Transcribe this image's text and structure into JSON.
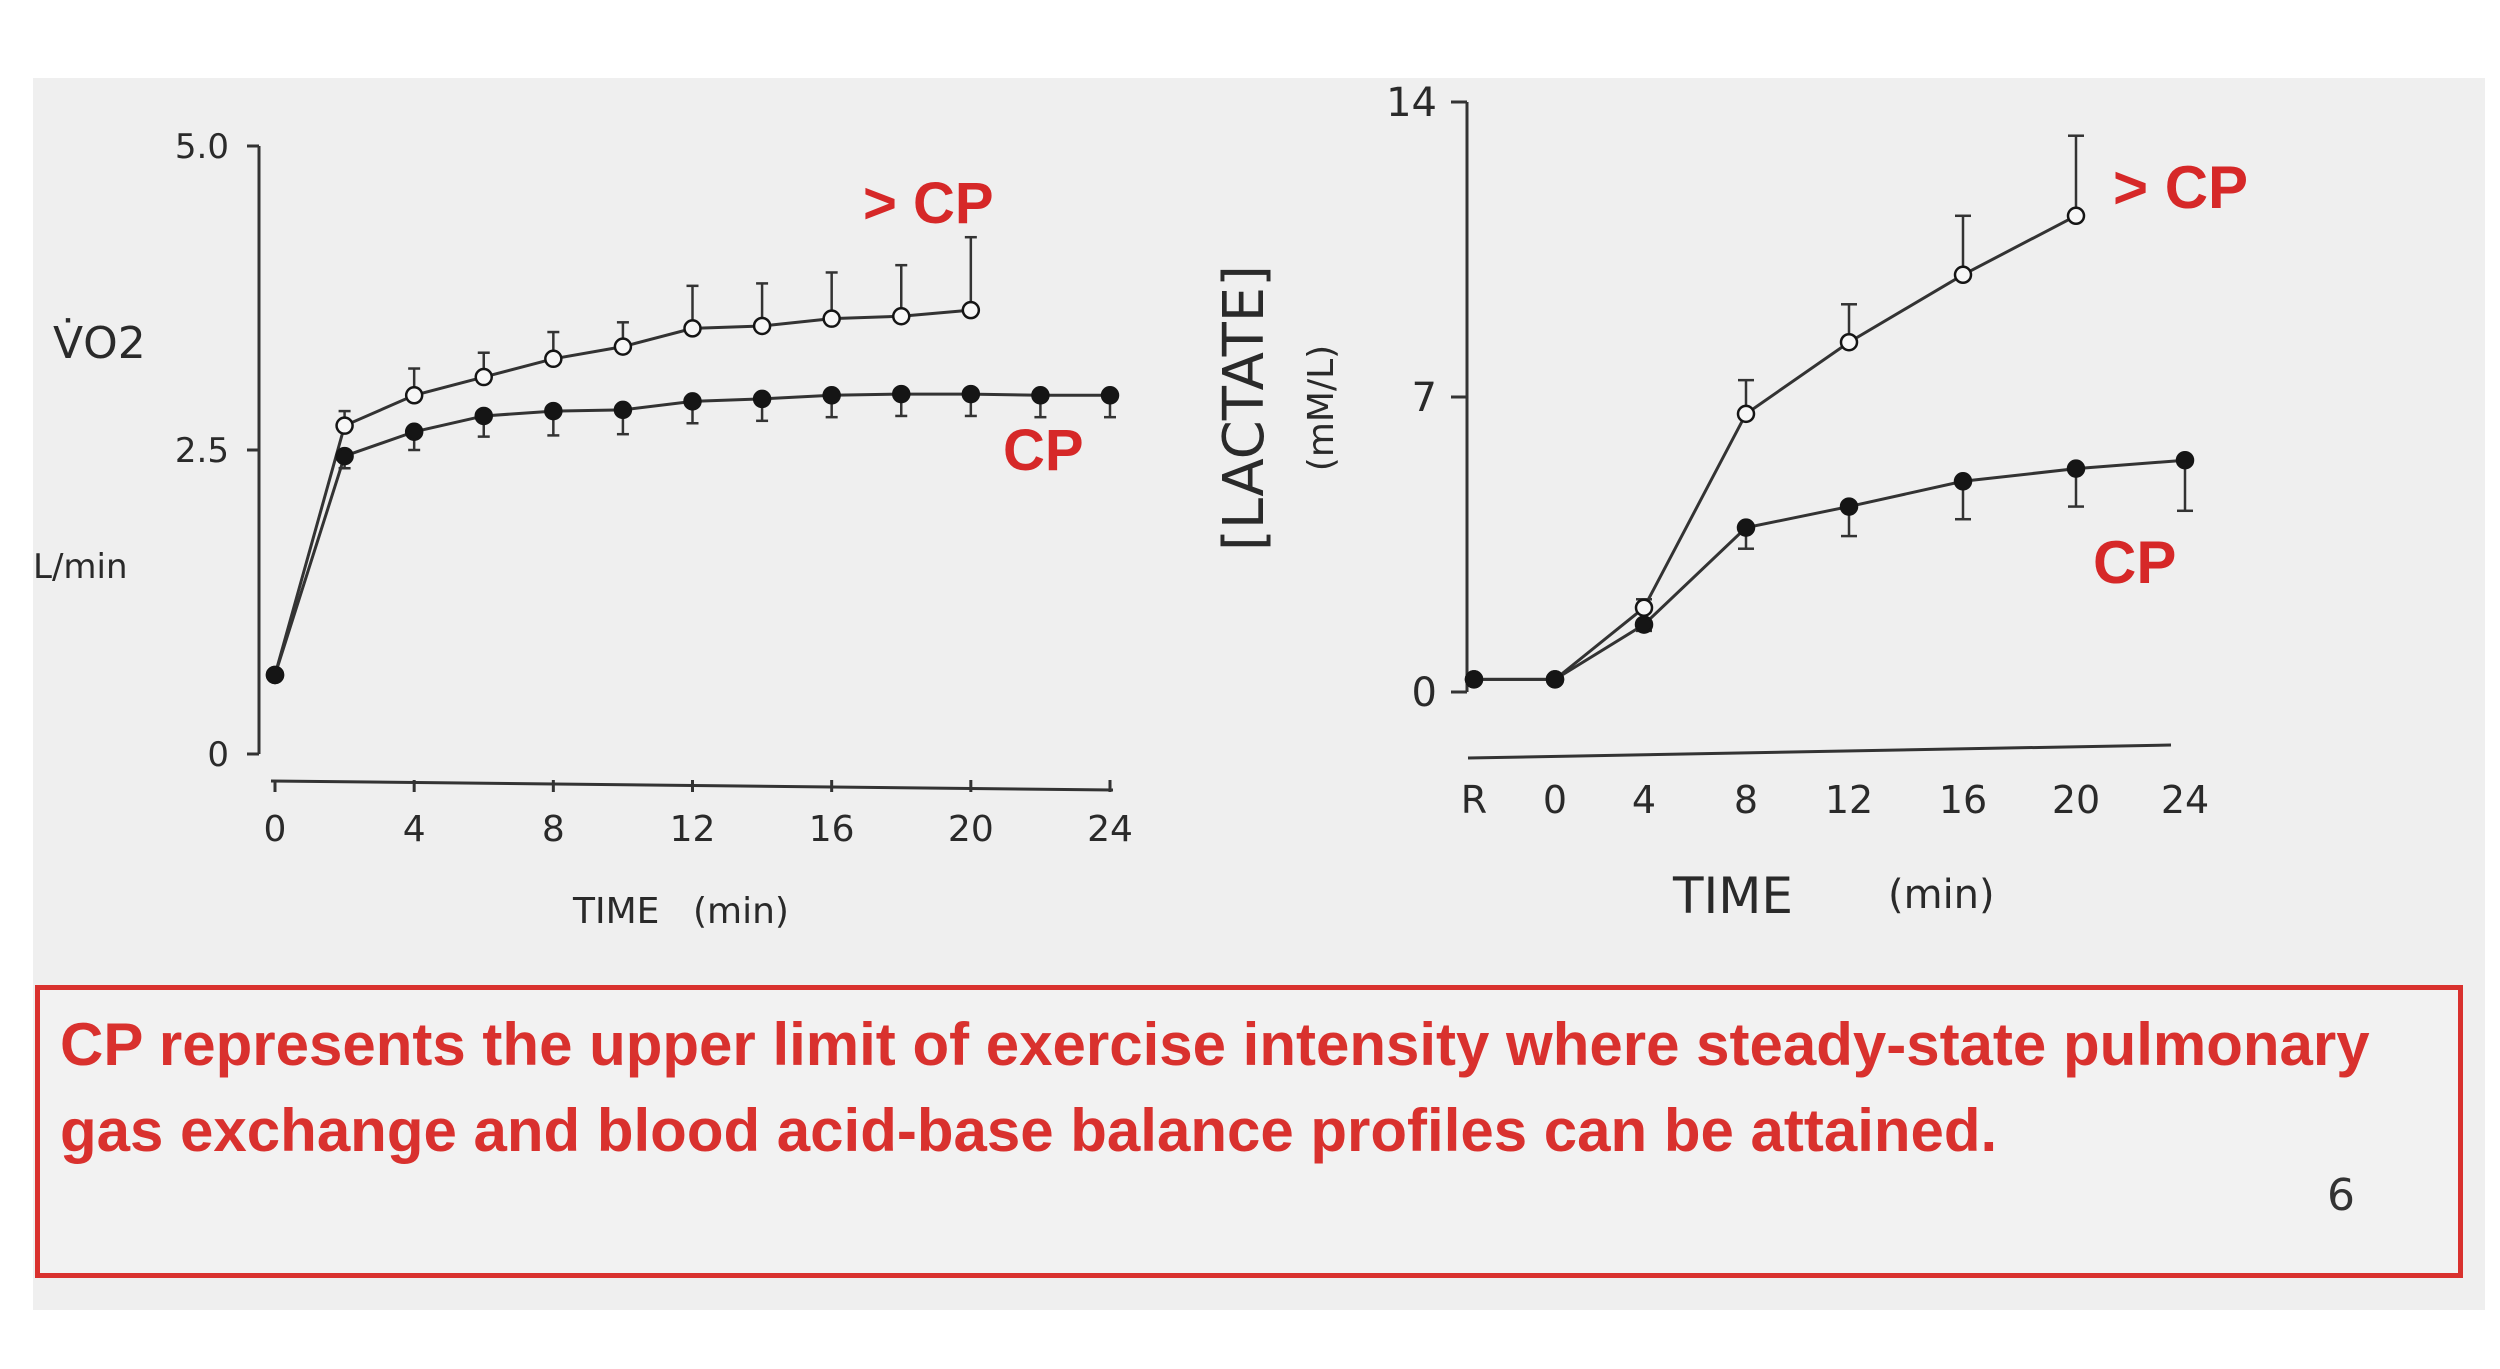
{
  "chart_data": [
    {
      "type": "line",
      "ylabel": "V̇O2",
      "yunit": "L/min",
      "xlabel": "TIME",
      "xunit": "(min)",
      "xlim": [
        0,
        24
      ],
      "ylim": [
        0,
        5.0
      ],
      "xticks": [
        "0",
        "4",
        "8",
        "12",
        "16",
        "20",
        "24"
      ],
      "yticks": [
        "0",
        "2.5",
        "5.0"
      ],
      "series": [
        {
          "name": "> CP",
          "marker": "open",
          "x": [
            0,
            2,
            4,
            6,
            8,
            10,
            12,
            14,
            16,
            18,
            20
          ],
          "y": [
            0.65,
            2.7,
            2.95,
            3.1,
            3.25,
            3.35,
            3.5,
            3.52,
            3.58,
            3.6,
            3.65
          ],
          "err": [
            0.05,
            0.12,
            0.22,
            0.2,
            0.22,
            0.2,
            0.35,
            0.35,
            0.38,
            0.42,
            0.6
          ]
        },
        {
          "name": "CP",
          "marker": "filled",
          "x": [
            0,
            2,
            4,
            6,
            8,
            10,
            12,
            14,
            16,
            18,
            20,
            22,
            24
          ],
          "y": [
            0.65,
            2.45,
            2.65,
            2.78,
            2.82,
            2.83,
            2.9,
            2.92,
            2.95,
            2.96,
            2.96,
            2.95,
            2.95
          ],
          "err": [
            0.05,
            0.1,
            0.15,
            0.17,
            0.2,
            0.2,
            0.18,
            0.18,
            0.18,
            0.18,
            0.18,
            0.18,
            0.18
          ]
        }
      ]
    },
    {
      "type": "line",
      "ylabel": "[LACTATE]",
      "yunit": "(mM/L)",
      "xlabel": "TIME",
      "xunit": "(min)",
      "xticks": [
        "R",
        "0",
        "4",
        "8",
        "12",
        "16",
        "20",
        "24"
      ],
      "ylim": [
        0,
        14
      ],
      "yticks": [
        "0",
        "7",
        "14"
      ],
      "series": [
        {
          "name": "> CP",
          "marker": "open",
          "x": [
            "R",
            "0",
            "4",
            "8",
            "12",
            "16",
            "20"
          ],
          "y": [
            0.3,
            0.3,
            2.0,
            6.6,
            8.3,
            9.9,
            11.3
          ],
          "err": [
            0,
            0,
            0.2,
            0.8,
            0.9,
            1.4,
            1.9
          ]
        },
        {
          "name": "CP",
          "marker": "filled",
          "x": [
            "R",
            "0",
            "4",
            "8",
            "12",
            "16",
            "20",
            "24"
          ],
          "y": [
            0.3,
            0.3,
            1.6,
            3.9,
            4.4,
            5.0,
            5.3,
            5.5
          ],
          "err": [
            0,
            0,
            0.15,
            0.5,
            0.7,
            0.9,
            0.9,
            1.2
          ]
        }
      ]
    }
  ],
  "caption": "CP represents the upper limit of exercise intensity where steady-state pulmonary gas exchange and blood acid-base balance  profiles can be attained.",
  "page_number": "6",
  "colors": {
    "accent": "#d9312e",
    "line": "#333333",
    "background": "#efefef"
  }
}
